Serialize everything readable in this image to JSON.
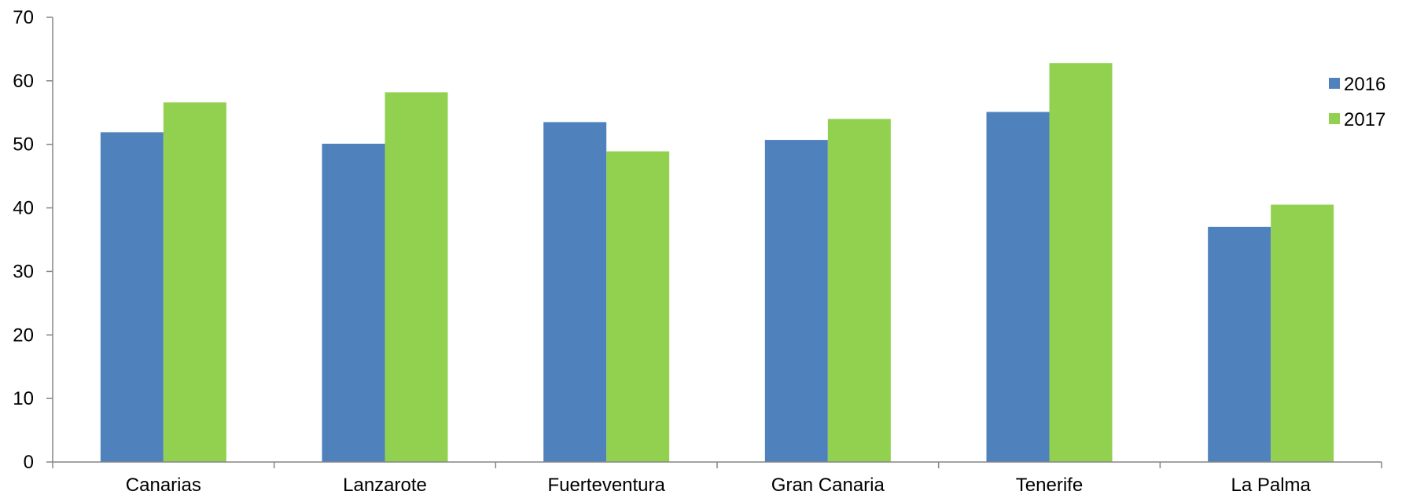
{
  "chart_data": {
    "type": "bar",
    "title": "",
    "xlabel": "",
    "ylabel": "",
    "ylim": [
      0,
      70
    ],
    "yticks": [
      0,
      10,
      20,
      30,
      40,
      50,
      60,
      70
    ],
    "grid": false,
    "legend_position": "right",
    "categories": [
      "Canarias",
      "Lanzarote",
      "Fuerteventura",
      "Gran Canaria",
      "Tenerife",
      "La Palma"
    ],
    "series": [
      {
        "name": "2016",
        "color": "#4F81BD",
        "values": [
          51.9,
          50.1,
          53.5,
          50.7,
          55.1,
          37.0
        ]
      },
      {
        "name": "2017",
        "color": "#92D050",
        "values": [
          56.6,
          58.2,
          48.9,
          54.0,
          62.8,
          40.5
        ]
      }
    ]
  }
}
